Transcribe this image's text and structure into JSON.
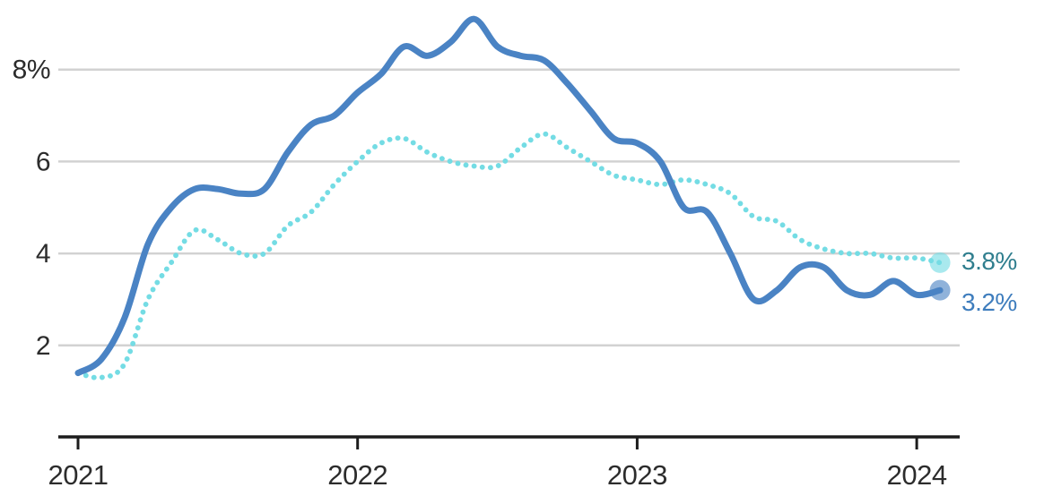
{
  "chart": {
    "background_color": "#ffffff",
    "end_labels": {
      "dotted": "3.8%",
      "solid": "3.2%"
    }
  },
  "chart_data": {
    "type": "line",
    "title": "",
    "xlabel": "",
    "ylabel": "",
    "x_start": "2021-01",
    "x_interval": "month",
    "x_tick_labels": [
      "2021",
      "2022",
      "2023",
      "2024"
    ],
    "x_tick_years": [
      2021,
      2022,
      2023,
      2024
    ],
    "y_tick_labels": [
      "2",
      "4",
      "6",
      "8%"
    ],
    "y_tick_values": [
      2,
      4,
      6,
      8
    ],
    "ylim": [
      0,
      9.6
    ],
    "grid": "horizontal",
    "legend_position": "end-of-line-labels",
    "grid_color": "#d2d2d2",
    "axis_color": "#1c1c1c",
    "tick_label_color": "#2c2c2c",
    "series": [
      {
        "name": "dotted-teal-line",
        "style": "dotted",
        "color": "#74dce4",
        "end_label": "3.8%",
        "end_label_color": "#2f7e8e",
        "end_dot": true,
        "values": [
          1.4,
          1.3,
          1.6,
          3.0,
          3.8,
          4.5,
          4.3,
          4.0,
          4.0,
          4.6,
          4.9,
          5.5,
          6.0,
          6.4,
          6.5,
          6.2,
          6.0,
          5.9,
          5.9,
          6.3,
          6.6,
          6.3,
          6.0,
          5.7,
          5.6,
          5.5,
          5.6,
          5.5,
          5.3,
          4.8,
          4.7,
          4.3,
          4.1,
          4.0,
          4.0,
          3.9,
          3.9,
          3.8
        ]
      },
      {
        "name": "solid-blue-line",
        "style": "solid",
        "color": "#4a83c4",
        "end_label": "3.2%",
        "end_label_color": "#3e7dbd",
        "end_dot": true,
        "values": [
          1.4,
          1.7,
          2.6,
          4.2,
          5.0,
          5.4,
          5.4,
          5.3,
          5.4,
          6.2,
          6.8,
          7.0,
          7.5,
          7.9,
          8.5,
          8.3,
          8.6,
          9.1,
          8.5,
          8.3,
          8.2,
          7.7,
          7.1,
          6.5,
          6.4,
          6.0,
          5.0,
          4.9,
          4.0,
          3.0,
          3.2,
          3.7,
          3.7,
          3.2,
          3.1,
          3.4,
          3.1,
          3.2
        ]
      }
    ]
  }
}
